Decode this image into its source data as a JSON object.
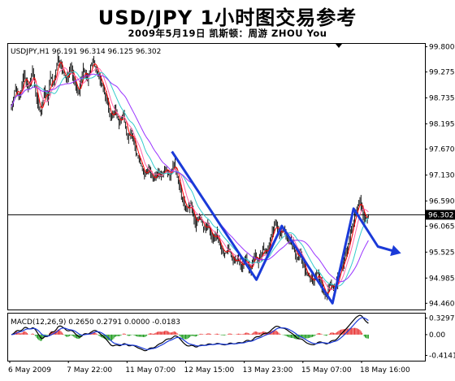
{
  "title": "USD/JPY 1小时图交易参考",
  "subtitle": "2009年5月19日   凯斯顿：周游 ZHOU You",
  "chart_data": {
    "type": "candlestick",
    "symbol_header": "USDJPY,H1  96.191 96.314 96.125 96.302",
    "price_axis": {
      "ticks": [
        "99.800",
        "99.275",
        "98.735",
        "98.195",
        "97.670",
        "97.130",
        "96.590",
        "96.065",
        "95.525",
        "94.985",
        "94.460"
      ],
      "range": [
        94.33,
        99.86
      ]
    },
    "current_price": {
      "value": 96.302,
      "label": "96.302"
    },
    "time_labels": [
      "6 May 2009",
      "7 May 22:00",
      "11 May 07:00",
      "12 May 15:00",
      "13 May 23:00",
      "15 May 07:00",
      "18 May 16:00"
    ],
    "price_points": [
      [
        0,
        98.55
      ],
      [
        4,
        98.95
      ],
      [
        8,
        98.75
      ],
      [
        12,
        99.25
      ],
      [
        16,
        98.9
      ],
      [
        20,
        99.3
      ],
      [
        24,
        98.7
      ],
      [
        28,
        98.4
      ],
      [
        31,
        98.9
      ],
      [
        34,
        98.7
      ],
      [
        37,
        99.2
      ],
      [
        40,
        99.0
      ],
      [
        44,
        99.6
      ],
      [
        48,
        99.3
      ],
      [
        52,
        99.1
      ],
      [
        56,
        99.4
      ],
      [
        60,
        99.0
      ],
      [
        64,
        98.85
      ],
      [
        68,
        99.35
      ],
      [
        72,
        99.1
      ],
      [
        75,
        99.4
      ],
      [
        78,
        99.5
      ],
      [
        82,
        99.2
      ],
      [
        86,
        99.0
      ],
      [
        90,
        98.7
      ],
      [
        94,
        98.3
      ],
      [
        98,
        98.5
      ],
      [
        102,
        98.2
      ],
      [
        106,
        98.4
      ],
      [
        110,
        97.9
      ],
      [
        114,
        98.0
      ],
      [
        118,
        97.6
      ],
      [
        122,
        97.4
      ],
      [
        126,
        97.1
      ],
      [
        130,
        97.3
      ],
      [
        134,
        97.0
      ],
      [
        138,
        97.2
      ],
      [
        142,
        97.1
      ],
      [
        146,
        97.3
      ],
      [
        150,
        97.1
      ],
      [
        154,
        97.4
      ],
      [
        158,
        97.0
      ],
      [
        162,
        96.6
      ],
      [
        166,
        96.4
      ],
      [
        170,
        96.5
      ],
      [
        174,
        96.1
      ],
      [
        178,
        96.3
      ],
      [
        182,
        96.0
      ],
      [
        186,
        96.1
      ],
      [
        190,
        95.8
      ],
      [
        194,
        95.9
      ],
      [
        198,
        95.6
      ],
      [
        202,
        95.5
      ],
      [
        206,
        95.6
      ],
      [
        210,
        95.3
      ],
      [
        214,
        95.4
      ],
      [
        218,
        95.2
      ],
      [
        222,
        95.4
      ],
      [
        226,
        95.1
      ],
      [
        230,
        95.5
      ],
      [
        234,
        95.3
      ],
      [
        238,
        95.6
      ],
      [
        242,
        95.5
      ],
      [
        246,
        95.9
      ],
      [
        250,
        96.1
      ],
      [
        254,
        95.9
      ],
      [
        258,
        96.0
      ],
      [
        262,
        95.8
      ],
      [
        266,
        95.7
      ],
      [
        270,
        95.4
      ],
      [
        274,
        95.5
      ],
      [
        278,
        95.1
      ],
      [
        282,
        95.0
      ],
      [
        286,
        94.9
      ],
      [
        290,
        95.1
      ],
      [
        294,
        94.8
      ],
      [
        298,
        94.6
      ],
      [
        302,
        94.9
      ],
      [
        306,
        94.7
      ],
      [
        310,
        95.1
      ],
      [
        314,
        95.3
      ],
      [
        318,
        95.6
      ],
      [
        322,
        96.0
      ],
      [
        326,
        96.4
      ],
      [
        330,
        96.6
      ],
      [
        334,
        96.2
      ],
      [
        338,
        96.3
      ]
    ],
    "moving_averages": [
      {
        "color": "#ff0000",
        "period": 5
      },
      {
        "color": "#ff66aa",
        "period": 10
      },
      {
        "color": "#33cccc",
        "period": 20
      },
      {
        "color": "#9933ff",
        "period": 35
      }
    ],
    "trend_lines": {
      "color": "#1a3ad8",
      "points": [
        [
          152,
          97.62
        ],
        [
          232,
          94.95
        ],
        [
          256,
          96.07
        ],
        [
          304,
          94.46
        ],
        [
          324,
          96.43
        ],
        [
          347,
          95.64
        ]
      ],
      "arrow_end": [
        366,
        95.52
      ]
    },
    "macd": {
      "header": "MACD(12,26,9)  0.2650  0.2791  0.0000  -0.0183",
      "ticks": [
        "0.3297",
        "0.00",
        "-0.4141"
      ],
      "range": [
        -0.52,
        0.42
      ]
    }
  }
}
